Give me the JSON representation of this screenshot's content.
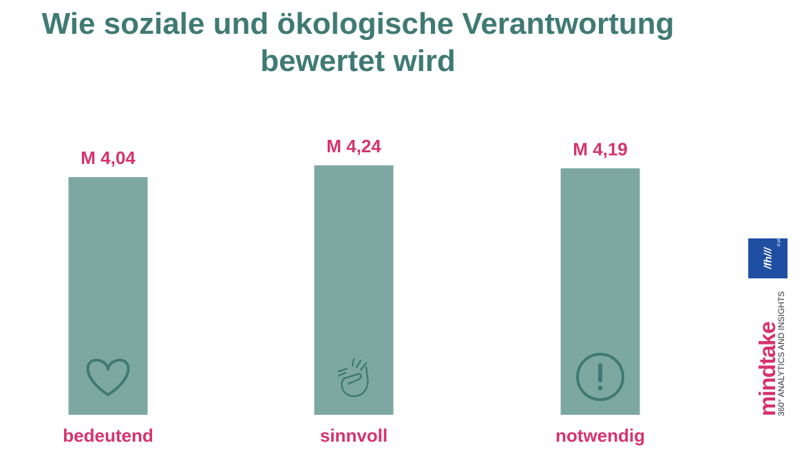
{
  "title": {
    "line1": "Wie soziale und ökologische Verantwortung",
    "line2": "bewertet wird"
  },
  "chart_data": {
    "type": "bar",
    "title": "Wie soziale und ökologische Verantwortung bewertet wird",
    "categories": [
      "bedeutend",
      "sinnvoll",
      "notwendig"
    ],
    "values": [
      4.04,
      4.24,
      4.19
    ],
    "data_labels": [
      "M 4,04",
      "M 4,24",
      "M 4,19"
    ],
    "icons": [
      "heart-icon",
      "snap-fingers-icon",
      "exclamation-icon"
    ],
    "xlabel": "",
    "ylabel": "",
    "grid": false,
    "legend": "none"
  },
  "colors": {
    "title": "#3f7a73",
    "bar": "#7da8a1",
    "label": "#d6336c",
    "icon": "#3f7a73",
    "logo_fh": "#1f4fa3",
    "logo_mindtake": "#d6336c",
    "logo_dot": "#f2b705"
  },
  "logos": {
    "fh": {
      "text": "/fh///",
      "sub": "st.pölten"
    },
    "mindtake": {
      "text": "mindtake",
      "tagline": "360° ANALYTICS AND INSIGHTS"
    }
  }
}
